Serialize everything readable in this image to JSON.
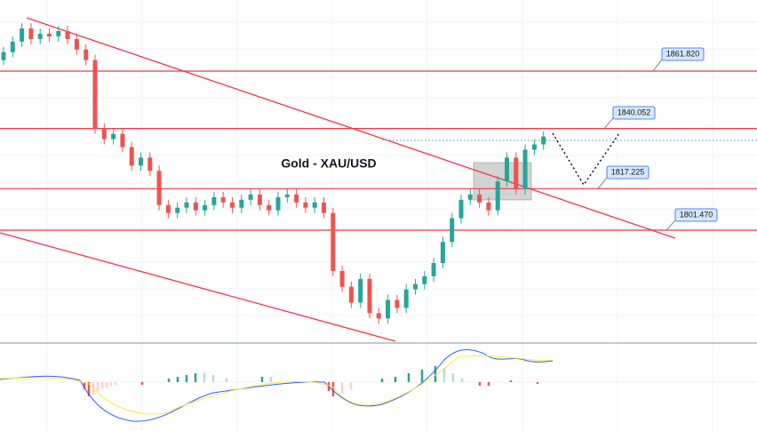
{
  "chart_data": {
    "type": "candlestick",
    "title": "Gold - XAU/USD",
    "ylim": [
      1759,
      1888.8
    ],
    "up_color": "#26a69a",
    "down_color": "#ef5350",
    "level_color": "#f23645",
    "open": [
      1866,
      1869,
      1873,
      1878,
      1874,
      1876,
      1875,
      1877,
      1874,
      1870,
      1866,
      1840,
      1836,
      1838,
      1833,
      1826,
      1829,
      1824,
      1811,
      1808,
      1810,
      1812,
      1809,
      1811,
      1814,
      1812,
      1810,
      1813,
      1815,
      1811,
      1809,
      1814,
      1815,
      1812,
      1810,
      1812,
      1808,
      1786,
      1780,
      1774,
      1783,
      1770,
      1768,
      1775,
      1772,
      1779,
      1781,
      1784,
      1789,
      1797,
      1806,
      1813,
      1815,
      1812,
      1809,
      1820,
      1829,
      1817,
      1832,
      1834
    ],
    "high": [
      1871,
      1875,
      1880,
      1880,
      1878,
      1878,
      1879,
      1879,
      1876,
      1872,
      1868,
      1842,
      1840,
      1840,
      1835,
      1831,
      1831,
      1826,
      1813,
      1812,
      1814,
      1814,
      1813,
      1816,
      1816,
      1814,
      1815,
      1817,
      1817,
      1813,
      1816,
      1817,
      1817,
      1814,
      1814,
      1814,
      1810,
      1788,
      1782,
      1785,
      1785,
      1772,
      1777,
      1777,
      1781,
      1783,
      1786,
      1791,
      1799,
      1808,
      1815,
      1817,
      1817,
      1814,
      1822,
      1831,
      1831,
      1834,
      1836,
      1839
    ],
    "low": [
      1864,
      1867,
      1871,
      1872,
      1872,
      1873,
      1873,
      1872,
      1868,
      1864,
      1838,
      1834,
      1834,
      1831,
      1824,
      1824,
      1822,
      1809,
      1806,
      1806,
      1808,
      1807,
      1807,
      1809,
      1810,
      1808,
      1808,
      1811,
      1809,
      1807,
      1807,
      1812,
      1810,
      1808,
      1808,
      1806,
      1784,
      1778,
      1772,
      1772,
      1768,
      1766,
      1766,
      1770,
      1770,
      1777,
      1779,
      1782,
      1787,
      1795,
      1804,
      1811,
      1810,
      1807,
      1807,
      1818,
      1815,
      1815,
      1830,
      1832
    ],
    "close": [
      1869,
      1873,
      1878,
      1874,
      1876,
      1875,
      1877,
      1874,
      1870,
      1866,
      1840,
      1836,
      1838,
      1833,
      1826,
      1829,
      1824,
      1811,
      1808,
      1810,
      1812,
      1809,
      1811,
      1814,
      1812,
      1810,
      1813,
      1815,
      1811,
      1809,
      1814,
      1815,
      1812,
      1810,
      1812,
      1808,
      1786,
      1780,
      1774,
      1783,
      1770,
      1768,
      1775,
      1772,
      1779,
      1781,
      1784,
      1789,
      1797,
      1806,
      1813,
      1815,
      1812,
      1809,
      1820,
      1829,
      1817,
      1832,
      1834,
      1837
    ],
    "levels": {
      "values": [
        1861.82,
        1840.052,
        1817.225,
        1801.47
      ],
      "value_labels": [
        "1861.820",
        "1840.052",
        "1817.225",
        "1801.470"
      ]
    }
  }
}
